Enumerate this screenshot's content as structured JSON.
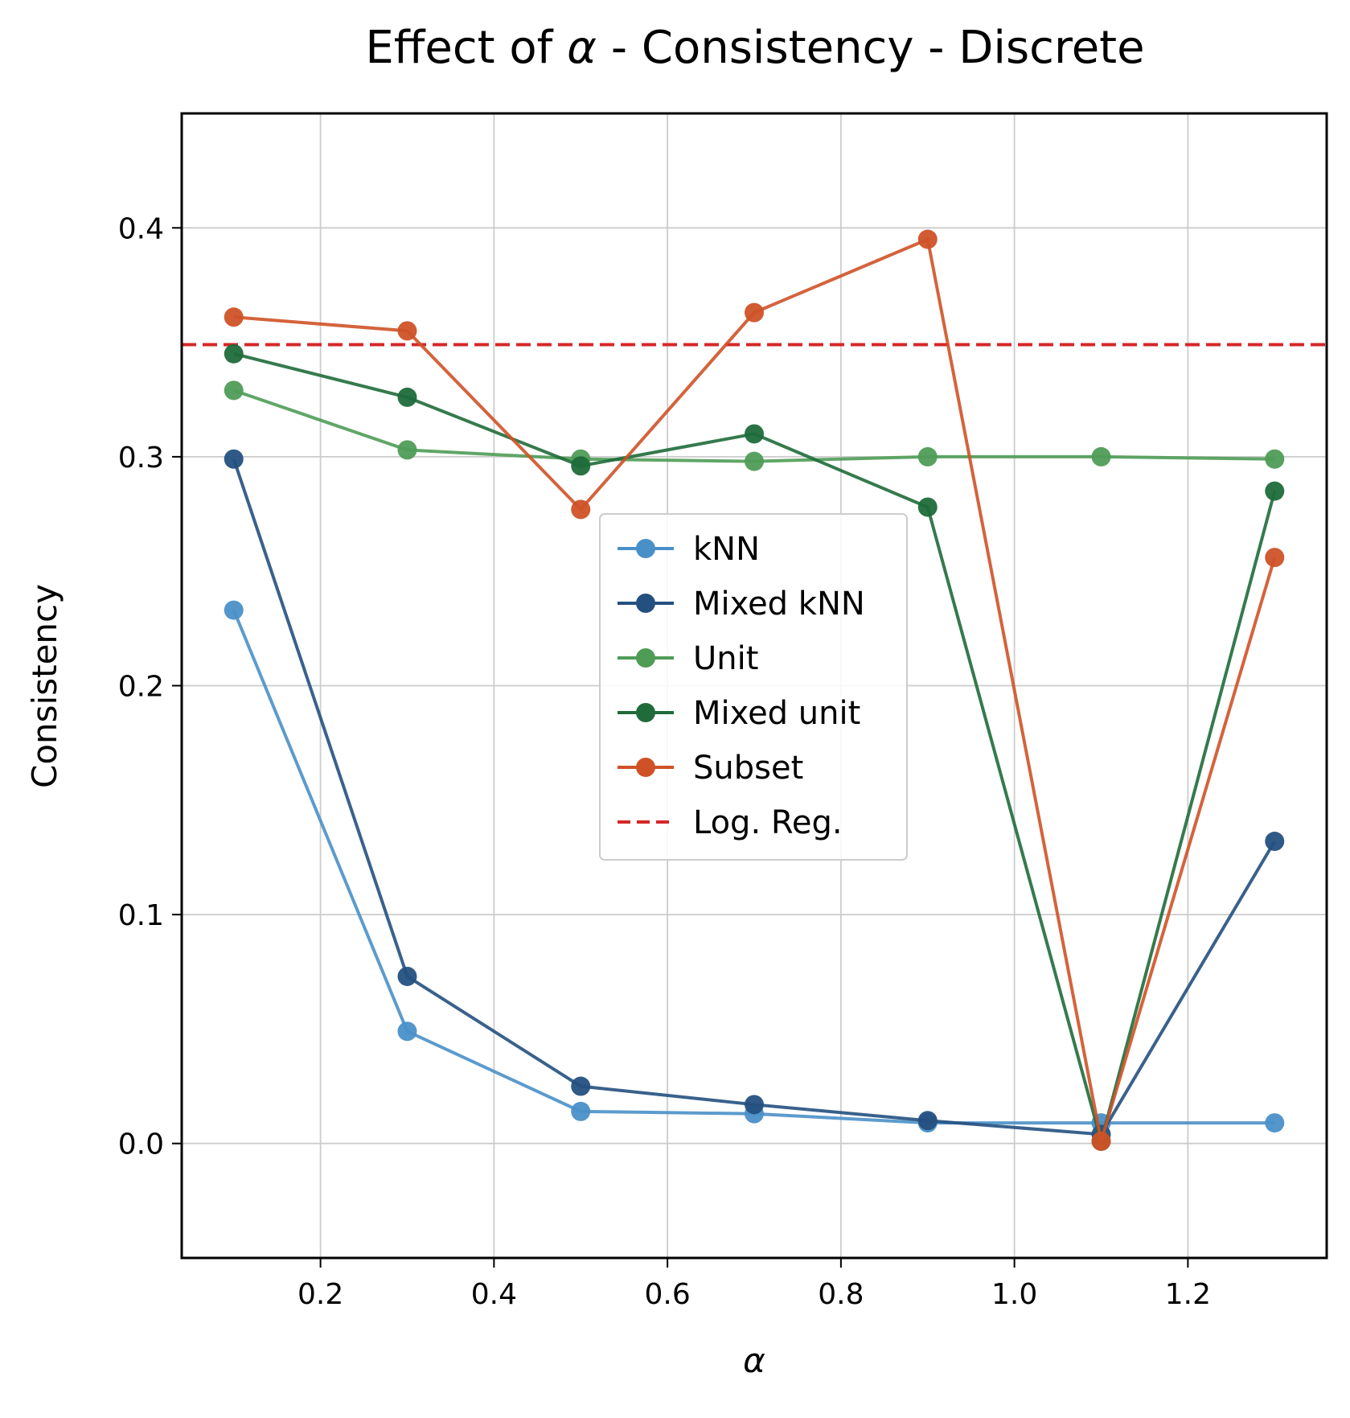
{
  "chart_data": {
    "type": "line",
    "title_prefix": "Effect of ",
    "title_symbol": "α",
    "title_suffix": " - Consistency - Discrete",
    "xlabel": "α",
    "ylabel": "Consistency",
    "xlim": [
      0.04,
      1.36
    ],
    "ylim": [
      -0.05,
      0.45
    ],
    "xticks": [
      0.2,
      0.4,
      0.6,
      0.8,
      1.0,
      1.2
    ],
    "xtick_labels": [
      "0.2",
      "0.4",
      "0.6",
      "0.8",
      "1.0",
      "1.2"
    ],
    "yticks": [
      0.0,
      0.1,
      0.2,
      0.3,
      0.4
    ],
    "ytick_labels": [
      "0.0",
      "0.1",
      "0.2",
      "0.3",
      "0.4"
    ],
    "grid": true,
    "legend_position": "center",
    "x": [
      0.1,
      0.3,
      0.5,
      0.7,
      0.9,
      1.1,
      1.3
    ],
    "series": [
      {
        "name": "kNN",
        "color": "#4a90c8",
        "values": [
          0.233,
          0.049,
          0.014,
          0.013,
          0.009,
          0.009,
          0.009
        ]
      },
      {
        "name": "Mixed kNN",
        "color": "#24507f",
        "values": [
          0.299,
          0.073,
          0.025,
          0.017,
          0.01,
          0.004,
          0.132
        ]
      },
      {
        "name": "Unit",
        "color": "#4f9c57",
        "values": [
          0.329,
          0.303,
          0.299,
          0.298,
          0.3,
          0.3,
          0.299
        ]
      },
      {
        "name": "Mixed unit",
        "color": "#1f6b3a",
        "values": [
          0.345,
          0.326,
          0.296,
          0.31,
          0.278,
          0.001,
          0.285
        ]
      },
      {
        "name": "Subset",
        "color": "#cf5227",
        "values": [
          0.361,
          0.355,
          0.277,
          0.363,
          0.395,
          0.001,
          0.256
        ]
      }
    ],
    "reference_line": {
      "name": "Log. Reg.",
      "color": "#d62728",
      "value": 0.349
    }
  }
}
